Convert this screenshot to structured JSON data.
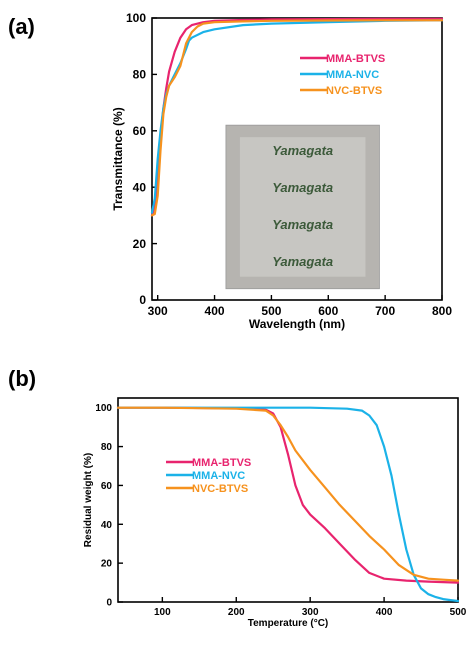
{
  "panel_labels": {
    "a": "(a)",
    "b": "(b)"
  },
  "colors": {
    "MMA-BTVS": "#e8246e",
    "MMA-NVC": "#1bb2e8",
    "NVC-BTVS": "#f6921e"
  },
  "chart_data": [
    {
      "id": "a",
      "type": "line",
      "xlabel": "Wavelength (nm)",
      "ylabel": "Transmittance (%)",
      "xlim": [
        290,
        800
      ],
      "ylim": [
        0,
        100
      ],
      "xticks": [
        300,
        400,
        500,
        600,
        700,
        800
      ],
      "yticks": [
        0,
        20,
        40,
        60,
        80,
        100
      ],
      "legend": [
        "MMA-BTVS",
        "MMA-NVC",
        "NVC-BTVS"
      ],
      "legend_position": "top-right",
      "inset_photo_text": [
        "Yamagata",
        "Yamagata",
        "Yamagata",
        "Yamagata"
      ],
      "series": [
        {
          "name": "MMA-BTVS",
          "color": "#e8246e",
          "x": [
            290,
            293,
            297,
            300,
            305,
            310,
            315,
            320,
            330,
            340,
            350,
            360,
            380,
            400,
            450,
            500,
            600,
            700,
            800
          ],
          "y": [
            30,
            32,
            37,
            45,
            58,
            68,
            75,
            81,
            88,
            93,
            96,
            97.5,
            98.5,
            99,
            99.3,
            99.5,
            99.6,
            99.7,
            99.7
          ]
        },
        {
          "name": "MMA-NVC",
          "color": "#1bb2e8",
          "x": [
            290,
            295,
            300,
            305,
            310,
            315,
            320,
            325,
            330,
            340,
            350,
            355,
            360,
            380,
            400,
            450,
            500,
            600,
            700,
            800
          ],
          "y": [
            31,
            36,
            50,
            60,
            68,
            73,
            76,
            78,
            80,
            84,
            89,
            92,
            93,
            95,
            96,
            97.5,
            98,
            98.5,
            99,
            99.2
          ]
        },
        {
          "name": "NVC-BTVS",
          "color": "#f6921e",
          "x": [
            290,
            295,
            300,
            305,
            310,
            315,
            320,
            330,
            340,
            350,
            360,
            370,
            380,
            400,
            450,
            500,
            600,
            700,
            800
          ],
          "y": [
            30,
            30.5,
            37,
            53,
            66,
            72,
            76,
            79,
            83,
            91,
            95,
            97,
            98,
            98.5,
            98.8,
            99,
            99.1,
            99.2,
            99.2
          ]
        }
      ]
    },
    {
      "id": "b",
      "type": "line",
      "xlabel": "Temperature (°C)",
      "ylabel": "Residual weight (%)",
      "xlim": [
        40,
        500
      ],
      "ylim": [
        0,
        105
      ],
      "xticks": [
        100,
        200,
        300,
        400,
        500
      ],
      "yticks": [
        0,
        20,
        40,
        60,
        80,
        100
      ],
      "legend": [
        "MMA-BTVS",
        "MMA-NVC",
        "NVC-BTVS"
      ],
      "legend_position": "center-left",
      "series": [
        {
          "name": "MMA-BTVS",
          "color": "#e8246e",
          "x": [
            40,
            100,
            200,
            240,
            250,
            260,
            270,
            280,
            290,
            300,
            320,
            340,
            360,
            380,
            400,
            430,
            460,
            500
          ],
          "y": [
            100,
            100,
            99.7,
            99,
            97,
            90,
            76,
            60,
            50,
            45,
            38,
            30,
            22,
            15,
            12,
            11,
            10.5,
            10
          ]
        },
        {
          "name": "MMA-NVC",
          "color": "#1bb2e8",
          "x": [
            40,
            200,
            300,
            350,
            370,
            380,
            390,
            400,
            410,
            420,
            430,
            440,
            450,
            460,
            470,
            480,
            490,
            500
          ],
          "y": [
            100,
            100,
            100,
            99.5,
            98.5,
            96,
            91,
            80,
            65,
            45,
            27,
            14,
            7,
            4,
            2.5,
            1.5,
            1,
            0.5
          ]
        },
        {
          "name": "NVC-BTVS",
          "color": "#f6921e",
          "x": [
            40,
            100,
            200,
            240,
            250,
            260,
            270,
            280,
            300,
            320,
            340,
            360,
            380,
            400,
            420,
            440,
            460,
            480,
            500
          ],
          "y": [
            100,
            100,
            99.5,
            98.5,
            96,
            91,
            85,
            78,
            68,
            59,
            50,
            42,
            34,
            27,
            19,
            14,
            12,
            11.5,
            11
          ]
        }
      ]
    }
  ]
}
